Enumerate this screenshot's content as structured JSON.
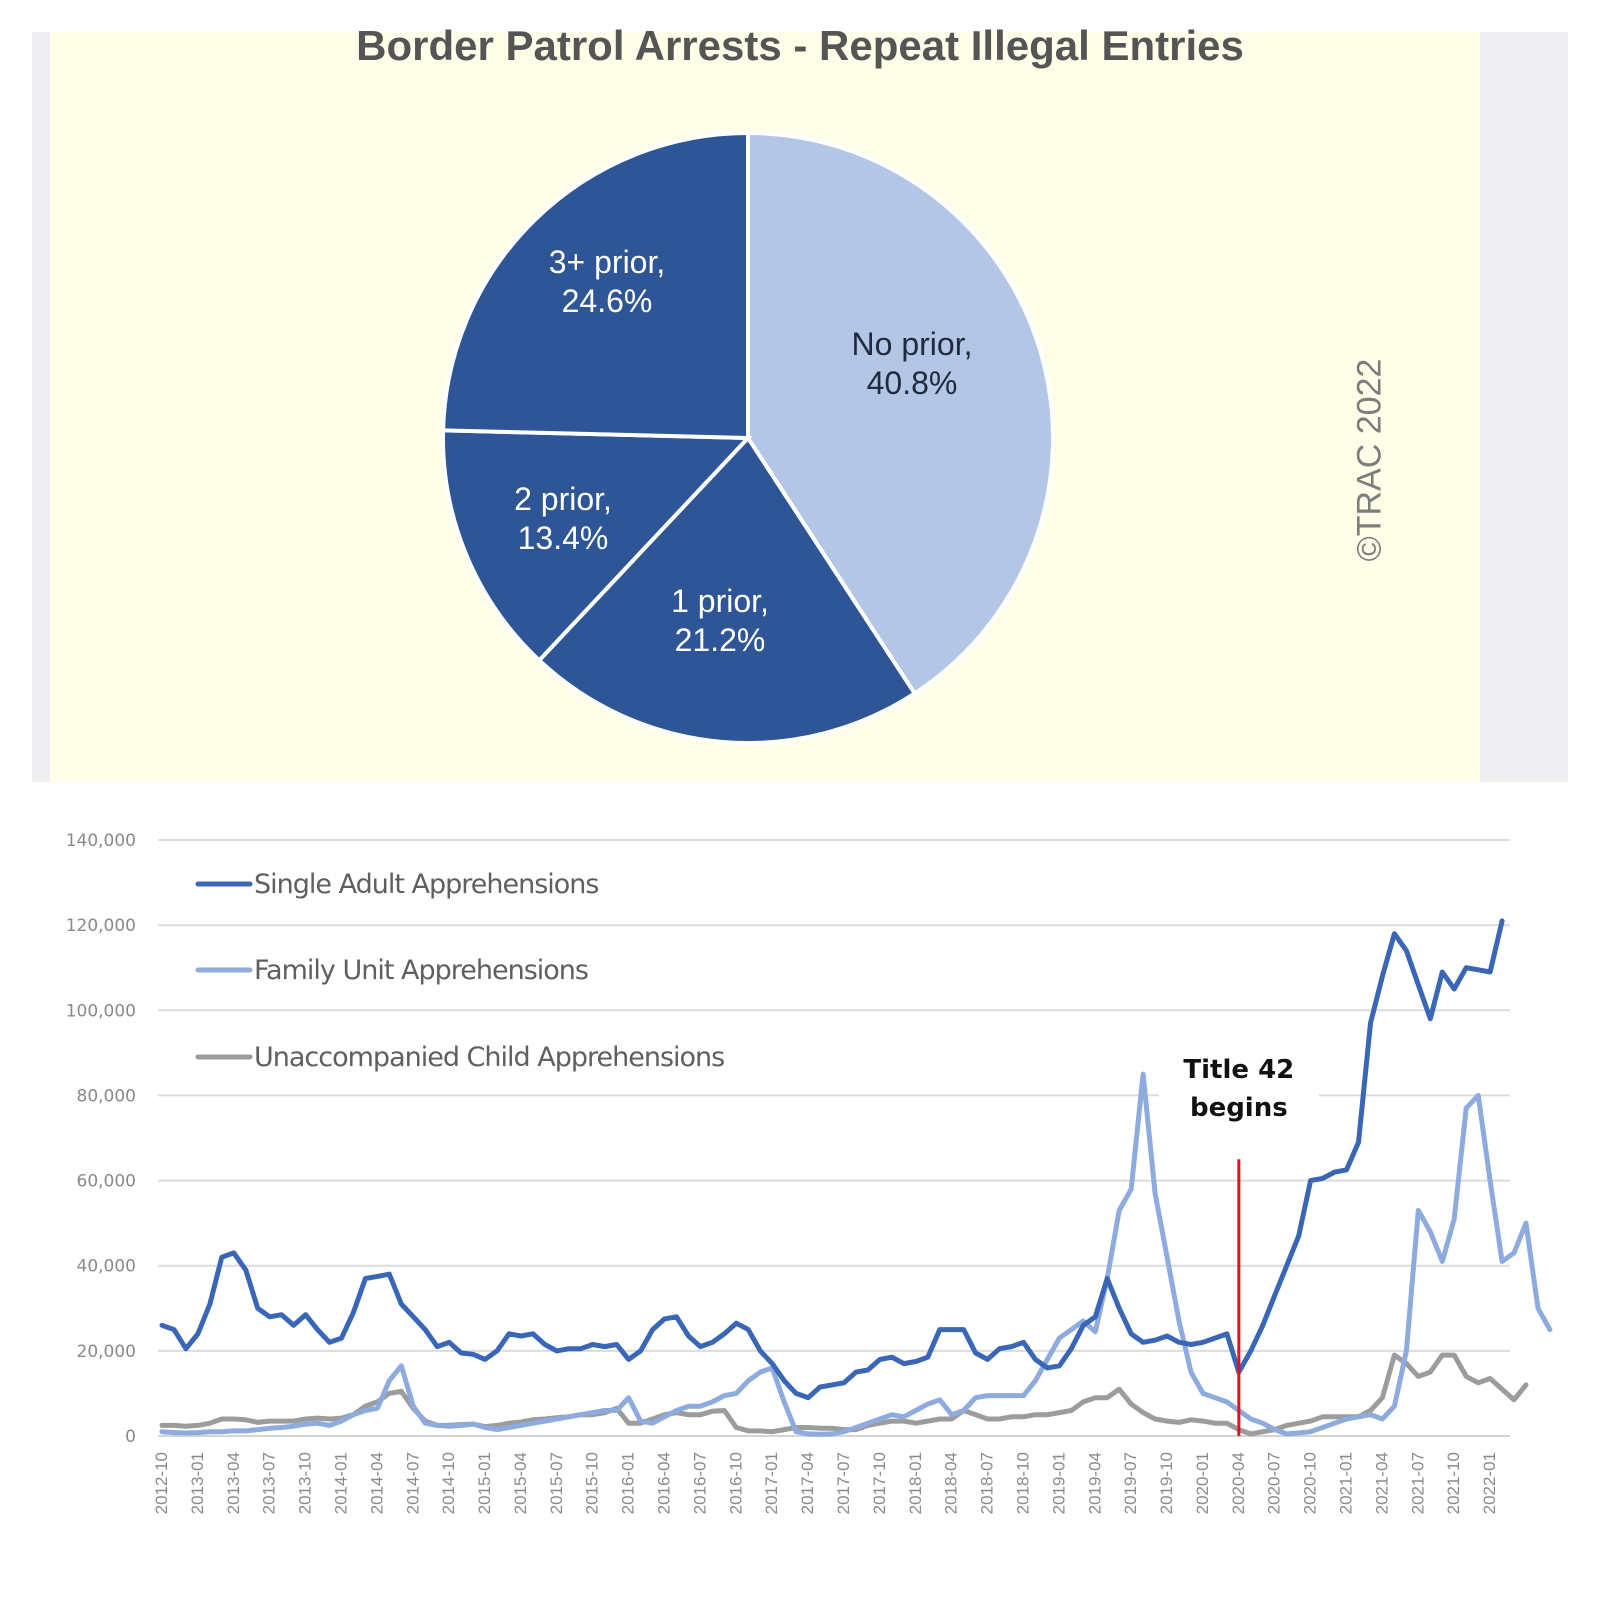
{
  "chart_data": [
    {
      "type": "pie",
      "title": "Border Patrol Arrests - Repeat Illegal Entries",
      "watermark": "©TRAC 2022",
      "slices": [
        {
          "label": "No prior",
          "value": 40.8,
          "display": "40.8%",
          "color": "#b3c6e5",
          "text_color": "#1f2a3c"
        },
        {
          "label": "1 prior",
          "value": 21.2,
          "display": "21.2%",
          "color": "#2e5596",
          "text_color": "#ffffff"
        },
        {
          "label": "2 prior",
          "value": 13.4,
          "display": "13.4%",
          "color": "#2e5596",
          "text_color": "#ffffff"
        },
        {
          "label": "3+ prior",
          "value": 24.6,
          "display": "24.6%",
          "color": "#2e5596",
          "text_color": "#ffffff"
        }
      ],
      "background": "#fefee9"
    },
    {
      "type": "line",
      "title": "",
      "xlabel": "",
      "ylabel": "",
      "ylim": [
        0,
        140000
      ],
      "yticks": [
        "0",
        "20,000",
        "40,000",
        "60,000",
        "80,000",
        "100,000",
        "120,000",
        "140,000"
      ],
      "ytick_values": [
        0,
        20000,
        40000,
        60000,
        80000,
        100000,
        120000,
        140000
      ],
      "grid": true,
      "legend_position": "top-left",
      "x_start": "2012-10",
      "x_end": "2022-02",
      "xticks": [
        "2012-10",
        "2013-01",
        "2013-04",
        "2013-07",
        "2013-10",
        "2014-01",
        "2014-04",
        "2014-07",
        "2014-10",
        "2015-01",
        "2015-04",
        "2015-07",
        "2015-10",
        "2016-01",
        "2016-04",
        "2016-07",
        "2016-10",
        "2017-01",
        "2017-04",
        "2017-07",
        "2017-10",
        "2018-01",
        "2018-04",
        "2018-07",
        "2018-10",
        "2019-01",
        "2019-04",
        "2019-07",
        "2019-10",
        "2020-01",
        "2020-04",
        "2020-07",
        "2020-10",
        "2021-01",
        "2021-04",
        "2021-07",
        "2021-10",
        "2022-01"
      ],
      "annotation": {
        "lines": [
          "Title 42",
          "begins"
        ],
        "x": "2020-04",
        "color": "#e0141c",
        "top_value": 65000
      },
      "series": [
        {
          "name": "Single Adult Apprehensions",
          "color": "#3a66b8",
          "values": [
            26,
            25,
            20.5,
            24,
            31,
            42,
            43,
            39,
            30,
            28,
            28.5,
            26,
            28.5,
            25,
            22,
            23,
            29,
            37,
            37.5,
            38,
            31,
            28,
            25,
            21,
            22,
            19.5,
            19.2,
            18,
            20,
            24,
            23.5,
            24,
            21.5,
            20,
            20.5,
            20.5,
            21.5,
            21,
            21.5,
            18,
            20,
            25,
            27.5,
            28,
            23.5,
            21,
            22,
            24,
            26.5,
            25,
            20,
            17,
            13,
            10,
            9,
            11.5,
            12,
            12.5,
            15,
            15.5,
            18,
            18.5,
            17,
            17.5,
            18.5,
            25,
            25,
            25,
            19.5,
            18,
            20.5,
            21,
            22,
            18,
            16,
            16.5,
            20.5,
            26,
            28,
            37,
            30,
            24,
            22,
            22.5,
            23.5,
            22,
            21.5,
            22,
            23,
            24,
            15,
            20,
            26,
            33,
            40,
            47,
            60,
            60.5,
            62,
            62.5,
            69,
            97,
            108,
            118,
            114,
            106,
            98,
            109,
            105,
            110,
            109.5,
            109,
            121
          ]
        },
        {
          "name": "Family Unit Apprehensions",
          "color": "#8eabdf",
          "values": [
            1,
            0.8,
            0.7,
            0.8,
            1,
            1,
            1.2,
            1.2,
            1.5,
            1.8,
            2,
            2.3,
            2.8,
            3,
            2.5,
            3.5,
            5,
            6,
            6.5,
            13,
            16.5,
            7,
            3,
            2.5,
            2.3,
            2.5,
            2.8,
            2,
            1.5,
            2,
            2.5,
            3,
            3.5,
            4,
            4.5,
            5,
            5.5,
            6,
            6,
            9,
            3.5,
            3,
            4.5,
            6,
            7,
            7,
            8,
            9.5,
            10,
            13,
            15,
            16,
            8,
            1,
            0.5,
            0.4,
            0.5,
            1,
            2,
            3,
            4,
            5,
            4.5,
            6,
            7.5,
            8.5,
            5,
            6,
            9,
            9.5,
            9.5,
            9.5,
            9.5,
            13,
            18,
            23,
            25,
            27,
            24.5,
            37,
            53,
            58,
            85,
            57,
            42,
            27,
            15,
            10,
            9,
            8,
            6,
            4,
            3,
            1.5,
            0.5,
            0.7,
            1,
            2,
            3,
            4,
            4.5,
            5,
            4,
            7,
            20,
            53,
            48,
            41,
            51,
            77,
            80,
            60,
            41,
            43,
            50,
            30,
            25
          ]
        },
        {
          "name": "Unaccompanied Child Apprehensions",
          "color": "#9c9c9c",
          "values": [
            2.5,
            2.5,
            2.3,
            2.5,
            3,
            4,
            4,
            3.8,
            3.2,
            3.5,
            3.5,
            3.5,
            4,
            4.2,
            4,
            4.2,
            5,
            7,
            8,
            10,
            10.5,
            6.5,
            3.5,
            2.5,
            2.5,
            2.7,
            2.8,
            2.2,
            2.5,
            3,
            3.3,
            3.8,
            4,
            4.3,
            4.5,
            5,
            5,
            5.5,
            6.5,
            3,
            3,
            4,
            5,
            5.5,
            5,
            5,
            5.8,
            6,
            2,
            1.2,
            1.2,
            1,
            1.5,
            2,
            2,
            1.8,
            1.8,
            1.5,
            1.5,
            2.5,
            3,
            3.5,
            3.5,
            3,
            3.5,
            4,
            4,
            6,
            5,
            4,
            4,
            4.5,
            4.5,
            5,
            5,
            5.5,
            6,
            8,
            9,
            9,
            11,
            7.5,
            5.5,
            4,
            3.5,
            3.2,
            3.8,
            3.5,
            3,
            3,
            1.5,
            0.5,
            1,
            1.5,
            2.5,
            3,
            3.5,
            4.5,
            4.5,
            4.5,
            4.5,
            6,
            9,
            19,
            17,
            14,
            15,
            19,
            19,
            14,
            12.5,
            13.5,
            11,
            8.5,
            12
          ]
        }
      ]
    }
  ]
}
